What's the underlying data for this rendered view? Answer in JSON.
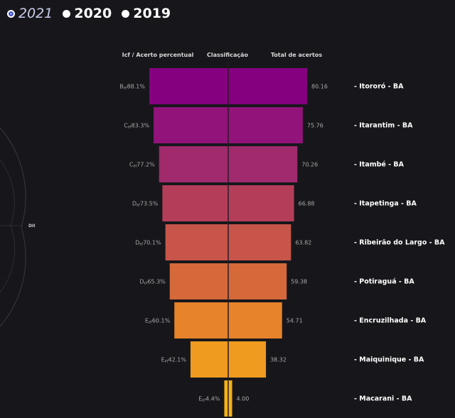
{
  "year_selector": {
    "options": [
      {
        "label": "2021",
        "selected": true
      },
      {
        "label": "2020",
        "selected": false
      },
      {
        "label": "2019",
        "selected": false
      }
    ]
  },
  "radar": {
    "axis_label": "DII"
  },
  "chart_data": {
    "type": "bar",
    "subtype": "funnel",
    "headers": {
      "left": "Icf / Acerto percentual",
      "center": "Classificação",
      "right": "Total de acertos"
    },
    "categories": [
      "- Itororó - BA",
      "- Itarantim - BA",
      "- Itambé - BA",
      "- Itapetinga - BA",
      "- Ribeirão do Largo - BA",
      "- Potiraguá - BA",
      "- Encruzilhada - BA",
      "- Maiquinique - BA",
      "- Macarani - BA"
    ],
    "values": [
      80.16,
      75.76,
      70.26,
      66.88,
      63.82,
      59.38,
      54.71,
      38.32,
      4.0
    ],
    "value_labels": [
      "80.16",
      "75.76",
      "70.26",
      "66.88",
      "63.82",
      "59.38",
      "54.71",
      "38.32",
      "4.00"
    ],
    "grade_labels": [
      "B",
      "C",
      "C",
      "D",
      "D",
      "D",
      "E",
      "E",
      "E"
    ],
    "grade_suffix": "ef",
    "percent_labels": [
      "88.1%",
      "83.3%",
      "77.2%",
      "73.5%",
      "70.1%",
      "65.3%",
      "60.1%",
      "42.1%",
      "4.4%"
    ],
    "colors": [
      "#85007f",
      "#92137a",
      "#a02a6c",
      "#b43e5a",
      "#c7554a",
      "#d5693a",
      "#e6832b",
      "#ef9b20",
      "#f5b01a"
    ],
    "divider_color": "#2a1a2a",
    "xlim": [
      0,
      80.16
    ]
  }
}
